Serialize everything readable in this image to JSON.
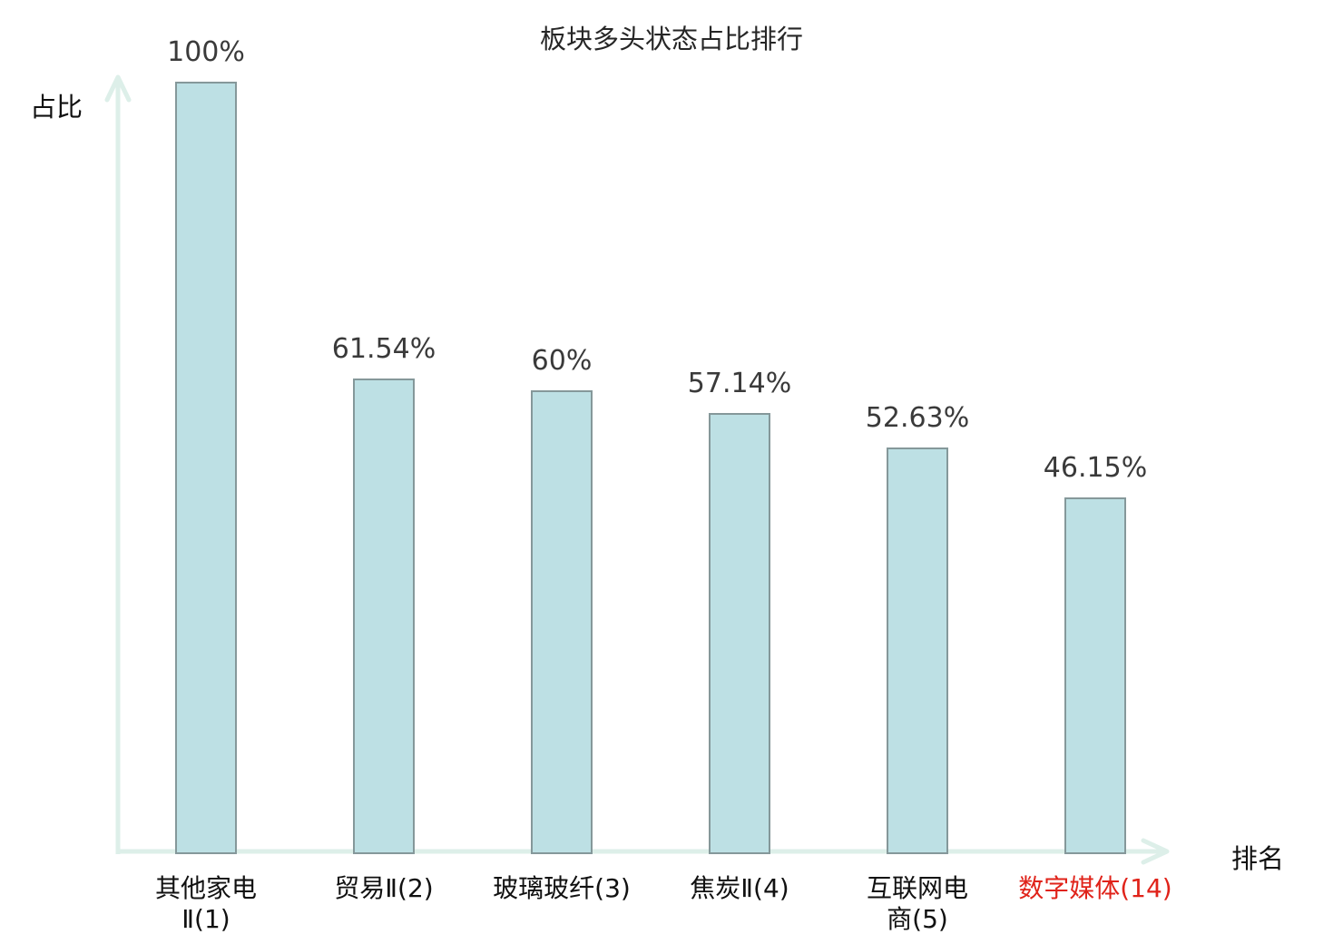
{
  "page": {
    "background": "#ffffff"
  },
  "chart_data": {
    "type": "bar",
    "title": "板块多头状态占比排行",
    "xlabel": "排名",
    "ylabel": "占比",
    "categories": [
      "其他家电Ⅱ(1)",
      "贸易Ⅱ(2)",
      "玻璃玻纤(3)",
      "焦炭Ⅱ(4)",
      "互联网电商(5)",
      "数字媒体(14)"
    ],
    "category_lines": [
      [
        "其他家电",
        "Ⅱ(1)"
      ],
      [
        "贸易Ⅱ(2)"
      ],
      [
        "玻璃玻纤(3)"
      ],
      [
        "焦炭Ⅱ(4)"
      ],
      [
        "互联网电",
        "商(5)"
      ],
      [
        "数字媒体(14)"
      ]
    ],
    "values": [
      100,
      61.54,
      60,
      57.14,
      52.63,
      46.15
    ],
    "value_labels": [
      "100%",
      "61.54%",
      "60%",
      "57.14%",
      "52.63%",
      "46.15%"
    ],
    "highlight_index": 5,
    "ylim": [
      0,
      100
    ],
    "grid": false,
    "legend": "none",
    "colors": {
      "bar_fill": "#bde0e4",
      "bar_border": "#85989a",
      "axis": "#ddefe9",
      "value_label": "#3a3a3a",
      "category_label": "#111111",
      "highlight": "#e0231a",
      "title": "#262626"
    }
  }
}
